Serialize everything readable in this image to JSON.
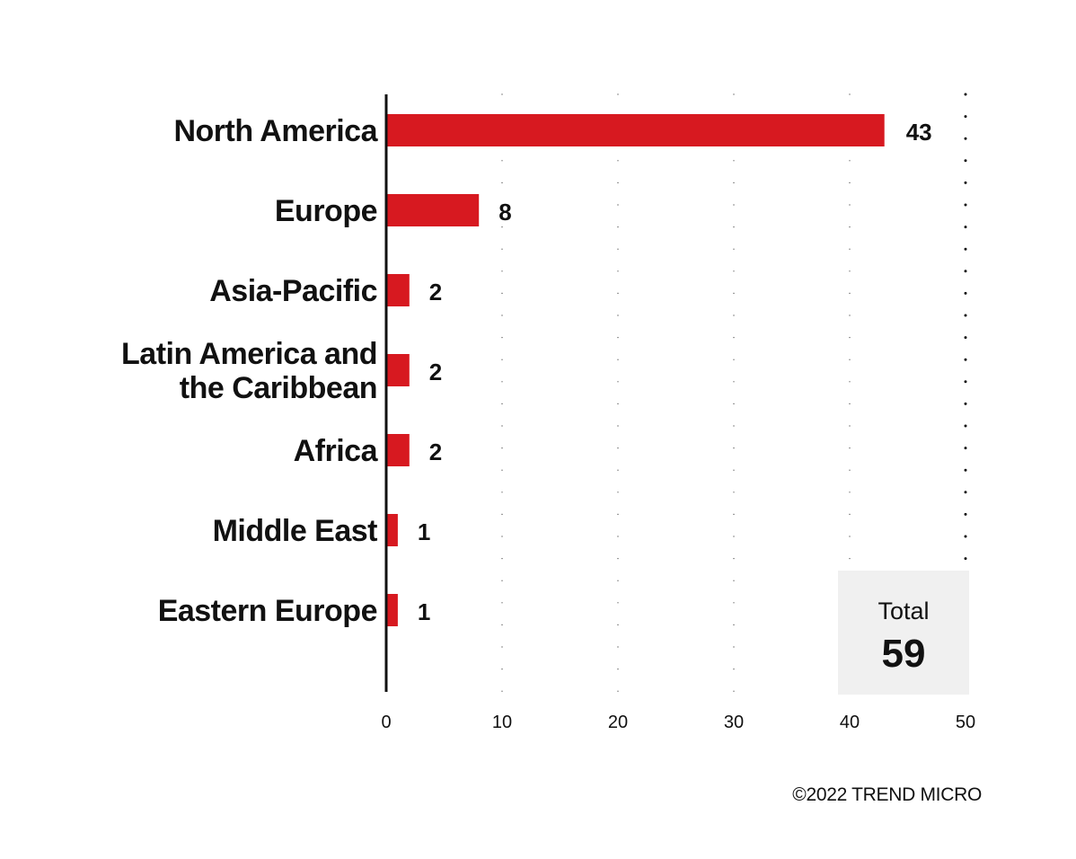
{
  "chart_data": {
    "type": "bar",
    "orientation": "horizontal",
    "categories": [
      [
        "North America"
      ],
      [
        "Europe"
      ],
      [
        "Asia-Pacific"
      ],
      [
        "Latin America and",
        "the Caribbean"
      ],
      [
        "Africa"
      ],
      [
        "Middle East"
      ],
      [
        "Eastern Europe"
      ]
    ],
    "values": [
      43,
      8,
      2,
      2,
      2,
      1,
      1
    ],
    "xlim": [
      0,
      50
    ],
    "xticks": [
      0,
      10,
      20,
      30,
      40,
      50
    ],
    "grid": "dotted vertical",
    "bar_color": "#d71920",
    "axis_color": "#111111",
    "grid_color": "#111111",
    "total": {
      "label": "Total",
      "value": "59"
    },
    "copyright": "©2022 TREND MICRO"
  }
}
